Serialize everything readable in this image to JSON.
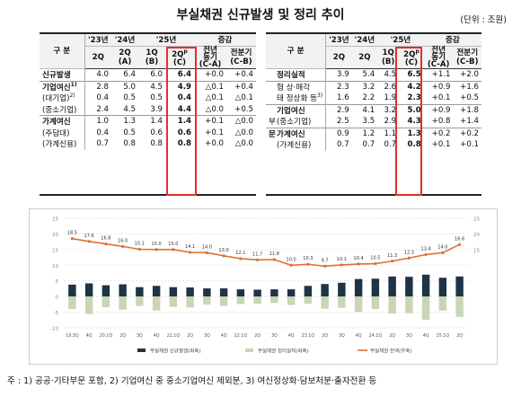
{
  "title": "부실채권 신규발생 및 정리 추이",
  "unit": "(단위 : 조원)",
  "left_table": {
    "header": {
      "category": "구  분",
      "y23": "'23년",
      "y24": "'24년",
      "y25": "'25년",
      "change": "증감",
      "c1": "2Q",
      "c2": "2Q",
      "c2b": "(A)",
      "c3": "1Q",
      "c3b": "(B)",
      "c4": "2Q",
      "c4sup": "p",
      "c4b": "(C)",
      "c5": "전년",
      "c5b": "동기",
      "c5c": "(C-A)",
      "c6": "전분기",
      "c6b": "(C-B)"
    },
    "rows": [
      {
        "label": "신규발생",
        "v": [
          "4.0",
          "6.4",
          "6.0",
          "6.4",
          "+0.0",
          "+0.4"
        ]
      },
      {
        "label": "기업여신",
        "sup": "1)",
        "v": [
          "2.8",
          "5.0",
          "4.5",
          "4.9",
          "△0.1",
          "+0.4"
        ]
      },
      {
        "label": "(대기업)",
        "sup": "2)",
        "v": [
          "0.4",
          "0.5",
          "0.5",
          "0.4",
          "△0.1",
          "△0.1"
        ]
      },
      {
        "label": "(중소기업)",
        "v": [
          "2.4",
          "4.5",
          "3.9",
          "4.4",
          "△0.0",
          "+0.5"
        ]
      },
      {
        "label": "가계여신",
        "v": [
          "1.0",
          "1.3",
          "1.4",
          "1.4",
          "+0.1",
          "△0.0"
        ]
      },
      {
        "label": "(주담대)",
        "v": [
          "0.4",
          "0.5",
          "0.6",
          "0.6",
          "+0.1",
          "△0.0"
        ]
      },
      {
        "label": "(가계신용)",
        "v": [
          "0.7",
          "0.8",
          "0.8",
          "0.8",
          "+0.0",
          "△0.0"
        ]
      }
    ]
  },
  "right_table": {
    "header": {
      "category": "구  분",
      "y23": "'23년",
      "y24": "'24년",
      "y25": "'25년",
      "change": "증감",
      "c1": "2Q",
      "c2": "2Q",
      "c3": "1Q",
      "c3b": "(B)",
      "c4": "2Q",
      "c4sup": "p",
      "c4b": "(C)",
      "c5": "전년",
      "c5b": "동기",
      "c5c": "(C-A)",
      "c6": "전분기",
      "c6b": "(C-B)"
    },
    "rows": [
      {
        "pre": "",
        "label": "정리실적",
        "v": [
          "3.9",
          "5.4",
          "4.5",
          "6.5",
          "+1.1",
          "+2.0"
        ]
      },
      {
        "pre": "",
        "label": "형 상·매각",
        "v": [
          "2.3",
          "3.2",
          "2.6",
          "4.2",
          "+0.9",
          "+1.6"
        ]
      },
      {
        "pre": "",
        "label": "태 정상화 등",
        "sup": "3)",
        "v": [
          "1.6",
          "2.2",
          "1.9",
          "2.3",
          "+0.1",
          "+0.5"
        ]
      },
      {
        "pre": "",
        "label": "기업여신",
        "v": [
          "2.9",
          "4.1",
          "3.2",
          "5.0",
          "+0.9",
          "+1.8"
        ]
      },
      {
        "pre": "부",
        "label": "(중소기업)",
        "v": [
          "2.5",
          "3.5",
          "2.9",
          "4.3",
          "+0.8",
          "+1.4"
        ]
      },
      {
        "pre": "문",
        "label": "가계여신",
        "v": [
          "0.9",
          "1.2",
          "1.1",
          "1.3",
          "+0.2",
          "+0.2"
        ]
      },
      {
        "pre": "",
        "label": "(가계신용)",
        "v": [
          "0.7",
          "0.7",
          "0.7",
          "0.8",
          "+0.1",
          "+0.1"
        ]
      }
    ]
  },
  "chart_data": {
    "type": "bar",
    "categories": [
      "19.3Q",
      "4Q",
      "20.1Q",
      "2Q",
      "3Q",
      "4Q",
      "21.1Q",
      "2Q",
      "3Q",
      "4Q",
      "22.1Q",
      "2Q",
      "3Q",
      "4Q",
      "23.1Q",
      "2Q",
      "3Q",
      "4Q",
      "24.1Q",
      "2Q",
      "3Q",
      "4Q",
      "25.1Q",
      "2Q"
    ],
    "tick_labels": [
      "19.3Q",
      "4Q",
      "20.1Q",
      "2Q",
      "3Q",
      "4Q",
      "21.1Q",
      "2Q",
      "3Q",
      "4Q",
      "22.1Q",
      "2Q",
      "3Q",
      "4Q",
      "23.1Q",
      "2Q",
      "3Q",
      "4Q",
      "24.1Q",
      "2Q",
      "3Q",
      "4Q",
      "25.1Q",
      "2Q"
    ],
    "series": [
      {
        "name": "부실채권 신규발생(좌축)",
        "color": "#1f3347",
        "values": [
          3.8,
          4.2,
          3.6,
          3.9,
          3.0,
          3.4,
          3.0,
          2.9,
          2.6,
          2.6,
          2.3,
          2.2,
          2.3,
          2.3,
          3.4,
          4.0,
          4.4,
          5.6,
          5.7,
          6.4,
          6.3,
          7.0,
          6.0,
          6.4
        ]
      },
      {
        "name": "부실채권 정리실적(좌축)",
        "color": "#c9d6b4",
        "values": [
          -4.0,
          -5.6,
          -3.4,
          -4.2,
          -3.0,
          -4.5,
          -3.3,
          -3.5,
          -2.6,
          -3.0,
          -2.4,
          -2.3,
          -2.1,
          -2.7,
          -2.3,
          -3.9,
          -3.6,
          -4.9,
          -4.0,
          -5.4,
          -5.3,
          -7.4,
          -4.5,
          -6.5
        ]
      },
      {
        "name": "부실채권 잔액(우축)",
        "color": "#e07030",
        "values": [
          18.5,
          17.6,
          16.8,
          16.0,
          15.1,
          15.0,
          15.0,
          14.1,
          14.0,
          13.0,
          12.1,
          11.7,
          11.8,
          10.0,
          10.3,
          9.7,
          10.1,
          10.4,
          10.5,
          11.3,
          12.3,
          13.4,
          14.0,
          16.6
        ],
        "labels": [
          "18.5",
          "17.6",
          "16.8",
          "16.0",
          "15.1",
          "15.0",
          "15.0",
          "14.1",
          "14.0",
          "13.0",
          "12.1",
          "11.7",
          "11.8",
          "10.0",
          "10.3",
          "9.7",
          "10.1",
          "10.4",
          "10.5",
          "11.3",
          "12.3",
          "13.4",
          "14.0",
          "16.6"
        ]
      }
    ],
    "yleft_ticks": [
      "25",
      "20",
      "15",
      "10",
      "5",
      "0",
      "-5",
      "-10"
    ],
    "yleft_lim": [
      -10,
      25
    ],
    "yright_ticks": [
      "25",
      "20",
      "15"
    ],
    "yright_lim": [
      -10,
      25
    ],
    "legend": [
      "부실채권 신규발생(좌축)",
      "부실채권 정리실적(좌축)",
      "부실채권 잔액(우축)"
    ],
    "legend_position": "bottom"
  },
  "footnote": "주 : 1) 공공·기타부문 포함, 2) 기업여신 중 중소기업여신 제외분, 3) 여신정상화·담보처분·출자전환 등"
}
